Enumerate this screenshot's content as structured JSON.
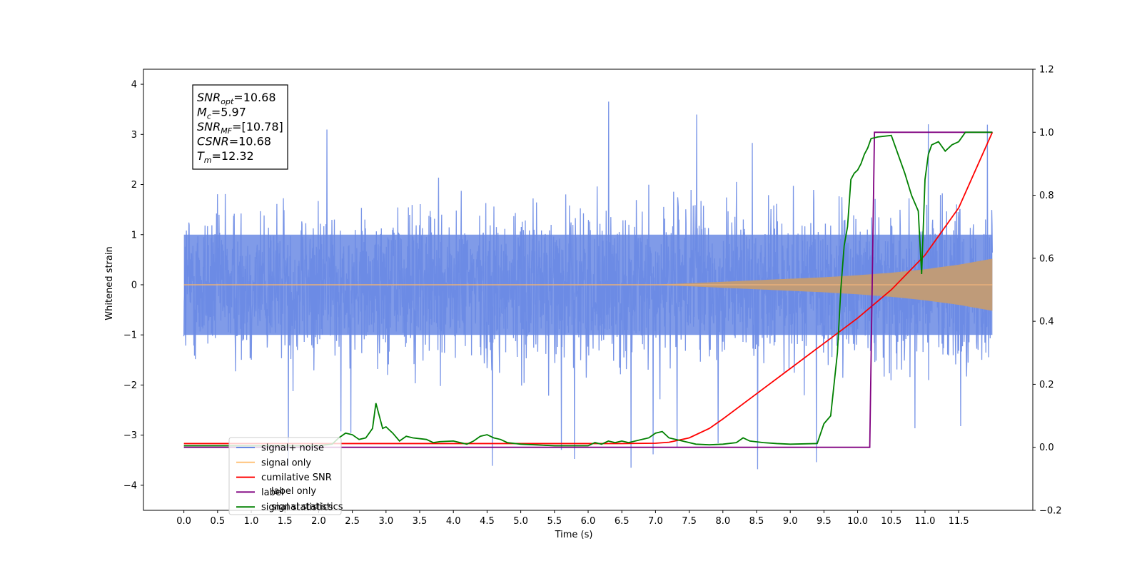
{
  "chart_data": {
    "type": "line",
    "xlabel": "Time (s)",
    "ylabel": "Whitened strain",
    "xlim": [
      -0.6,
      12.6
    ],
    "ylim": [
      -4.5,
      4.3
    ],
    "y2lim": [
      -0.2,
      1.2
    ],
    "x_ticks": [
      0.0,
      0.5,
      1.0,
      1.5,
      2.0,
      2.5,
      3.0,
      3.5,
      4.0,
      4.5,
      5.0,
      5.5,
      6.0,
      6.5,
      7.0,
      7.5,
      8.0,
      8.5,
      9.0,
      9.5,
      10.0,
      10.5,
      11.0,
      11.5
    ],
    "x_tick_labels": [
      "0.0",
      "0.5",
      "1.0",
      "1.5",
      "2.0",
      "2.5",
      "3.0",
      "3.5",
      "4.0",
      "4.5",
      "5.0",
      "5.5",
      "6.0",
      "6.5",
      "7.0",
      "7.5",
      "8.0",
      "8.5",
      "9.0",
      "9.5",
      "10.0",
      "10.5",
      "11.0",
      "11.5"
    ],
    "y_ticks": [
      -4,
      -3,
      -2,
      -1,
      0,
      1,
      2,
      3,
      4
    ],
    "y_tick_labels": [
      "−4",
      "−3",
      "−2",
      "−1",
      "0",
      "1",
      "2",
      "3",
      "4"
    ],
    "y2_ticks": [
      -0.2,
      0.0,
      0.2,
      0.4,
      0.6,
      0.8,
      1.0,
      1.2
    ],
    "y2_tick_labels": [
      "−0.2",
      "0.0",
      "0.2",
      "0.4",
      "0.6",
      "0.8",
      "1.0",
      "1.2"
    ],
    "grid": false,
    "legend_position": "lower-left",
    "legend": [
      {
        "label": "signal+ noise",
        "color": "#6a89e4"
      },
      {
        "label": "signal only",
        "color": "#ffc37a"
      },
      {
        "label": "cumilative SNR",
        "color": "#ff0000"
      },
      {
        "label": "label",
        "color": "#800080"
      },
      {
        "label": "signal statistics",
        "color": "#008000"
      }
    ],
    "hidden_legend_fragments": [
      "label only",
      "signal statistics"
    ],
    "annotation": {
      "lines": [
        {
          "base": "SNR",
          "sub": "opt",
          "value": "=10.68"
        },
        {
          "base": "M",
          "sub": "c",
          "value": "=5.97"
        },
        {
          "base": "SNR",
          "sub": "MF",
          "value": "=[10.78]"
        },
        {
          "base": "CSNR",
          "sub": "",
          "value": "=10.68"
        },
        {
          "base": "T",
          "sub": "m",
          "value": "=12.32"
        }
      ]
    },
    "series": [
      {
        "name": "signal+ noise",
        "axis": "left",
        "color": "#6a89e4",
        "envelope": {
          "x_start": 0.0,
          "x_end": 12.0,
          "typical_amplitude": 1.4,
          "max": 3.9,
          "min": -4.1
        }
      },
      {
        "name": "signal only",
        "axis": "left",
        "color": "#ffc37a",
        "envelope": {
          "x": [
            0.0,
            6.5,
            7.0,
            7.5,
            8.0,
            8.5,
            9.0,
            9.5,
            10.0,
            10.5,
            11.0,
            11.5,
            12.0
          ],
          "amplitude": [
            0.0,
            0.0,
            0.005,
            0.03,
            0.06,
            0.09,
            0.12,
            0.15,
            0.19,
            0.24,
            0.31,
            0.4,
            0.52
          ]
        }
      },
      {
        "name": "cumilative SNR",
        "axis": "right",
        "color": "#ff0000",
        "x": [
          0.0,
          6.5,
          7.0,
          7.2,
          7.5,
          7.8,
          8.0,
          8.5,
          9.0,
          9.5,
          10.0,
          10.5,
          11.0,
          11.5,
          12.0
        ],
        "y": [
          0.012,
          0.012,
          0.013,
          0.016,
          0.03,
          0.06,
          0.09,
          0.17,
          0.25,
          0.33,
          0.41,
          0.5,
          0.61,
          0.76,
          1.0
        ]
      },
      {
        "name": "label",
        "axis": "right",
        "color": "#800080",
        "x": [
          0.0,
          10.18,
          10.25,
          12.0
        ],
        "y": [
          0.0,
          0.0,
          1.0,
          1.0
        ]
      },
      {
        "name": "signal statistics",
        "axis": "right",
        "color": "#008000",
        "x": [
          0.0,
          1.0,
          2.0,
          2.2,
          2.3,
          2.4,
          2.5,
          2.6,
          2.7,
          2.8,
          2.85,
          2.9,
          2.95,
          3.0,
          3.1,
          3.2,
          3.3,
          3.4,
          3.6,
          3.7,
          3.8,
          4.0,
          4.2,
          4.3,
          4.4,
          4.5,
          4.6,
          4.7,
          4.8,
          5.0,
          5.5,
          6.0,
          6.1,
          6.2,
          6.3,
          6.4,
          6.5,
          6.6,
          6.8,
          6.9,
          7.0,
          7.1,
          7.2,
          7.4,
          7.6,
          7.8,
          8.0,
          8.2,
          8.3,
          8.4,
          8.6,
          8.8,
          9.0,
          9.4,
          9.5,
          9.6,
          9.7,
          9.75,
          9.8,
          9.85,
          9.9,
          9.95,
          10.0,
          10.05,
          10.1,
          10.15,
          10.2,
          10.3,
          10.5,
          10.6,
          10.7,
          10.8,
          10.9,
          10.95,
          11.0,
          11.05,
          11.1,
          11.2,
          11.3,
          11.4,
          11.5,
          11.6,
          11.7,
          11.8,
          12.0
        ],
        "y": [
          0.005,
          0.005,
          0.005,
          0.01,
          0.03,
          0.045,
          0.04,
          0.025,
          0.03,
          0.06,
          0.14,
          0.1,
          0.06,
          0.065,
          0.045,
          0.02,
          0.035,
          0.03,
          0.025,
          0.015,
          0.018,
          0.02,
          0.01,
          0.02,
          0.035,
          0.04,
          0.03,
          0.025,
          0.015,
          0.01,
          0.005,
          0.005,
          0.015,
          0.01,
          0.02,
          0.015,
          0.02,
          0.015,
          0.025,
          0.03,
          0.045,
          0.05,
          0.03,
          0.02,
          0.01,
          0.008,
          0.01,
          0.015,
          0.03,
          0.02,
          0.015,
          0.012,
          0.01,
          0.012,
          0.075,
          0.1,
          0.3,
          0.5,
          0.64,
          0.7,
          0.85,
          0.87,
          0.88,
          0.9,
          0.93,
          0.95,
          0.98,
          0.985,
          0.99,
          0.93,
          0.87,
          0.8,
          0.75,
          0.55,
          0.85,
          0.93,
          0.96,
          0.97,
          0.94,
          0.96,
          0.97,
          1.0,
          1.0,
          1.0,
          1.0
        ]
      }
    ]
  }
}
